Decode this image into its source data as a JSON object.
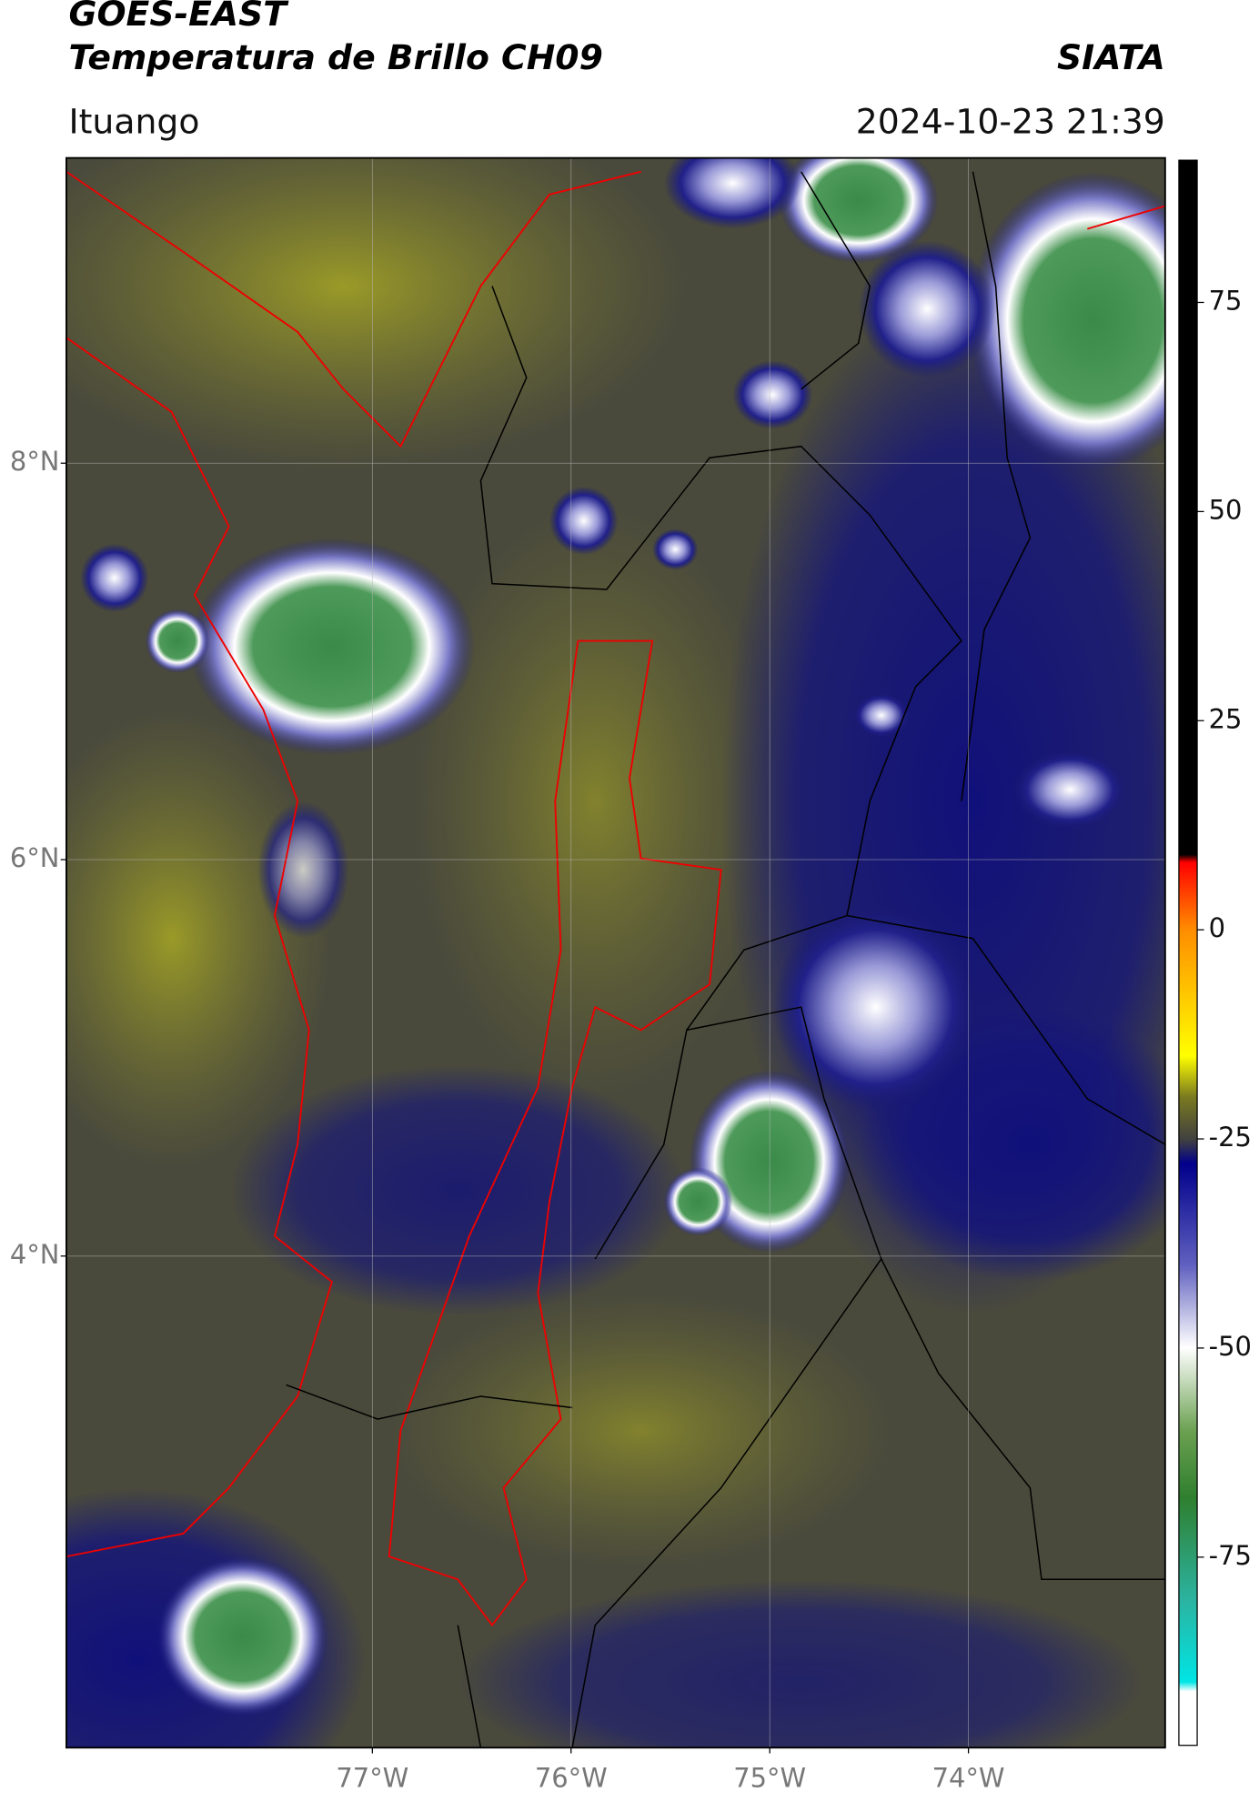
{
  "map": {
    "title": "GOES-EAST",
    "subtitle": "Temperatura de Brillo CH09",
    "source": "SIATA",
    "location": "Ituango",
    "datetime": "2024-10-23 21:39",
    "lonlim": [
      -78.54,
      -73.01
    ],
    "latlim": [
      1.52,
      9.54
    ],
    "xticks": [
      {
        "value": -77,
        "label": "77°W"
      },
      {
        "value": -76,
        "label": "76°W"
      },
      {
        "value": -75,
        "label": "75°W"
      },
      {
        "value": -74,
        "label": "74°W"
      }
    ],
    "yticks": [
      {
        "value": 8,
        "label": "8°N"
      },
      {
        "value": 6,
        "label": "6°N"
      },
      {
        "value": 4,
        "label": "4°N"
      }
    ],
    "grid": true,
    "colorbar": {
      "lim": [
        -97.5,
        92
      ],
      "ticks": [
        75,
        50,
        25,
        0,
        -25,
        -50,
        -75
      ]
    }
  }
}
